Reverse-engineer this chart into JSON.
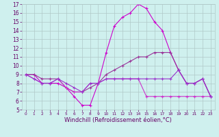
{
  "xlabel": "Windchill (Refroidissement éolien,°C)",
  "x": [
    0,
    1,
    2,
    3,
    4,
    5,
    6,
    7,
    8,
    9,
    10,
    11,
    12,
    13,
    14,
    15,
    16,
    17,
    18,
    19,
    20,
    21,
    22,
    23
  ],
  "series": [
    [
      9.0,
      9.0,
      8.0,
      8.0,
      8.0,
      7.5,
      6.5,
      5.5,
      5.5,
      8.0,
      11.5,
      14.5,
      15.5,
      16.0,
      17.0,
      16.5,
      15.0,
      14.0,
      11.5,
      9.5,
      8.0,
      8.0,
      8.5,
      6.5
    ],
    [
      9.0,
      9.0,
      8.5,
      8.5,
      8.5,
      7.5,
      7.0,
      7.0,
      7.5,
      8.0,
      9.0,
      9.5,
      10.0,
      10.5,
      11.0,
      11.0,
      11.5,
      11.5,
      11.5,
      9.5,
      8.0,
      8.0,
      8.5,
      6.5
    ],
    [
      9.0,
      8.5,
      8.0,
      8.0,
      8.5,
      7.5,
      7.0,
      7.0,
      8.0,
      8.0,
      8.5,
      8.5,
      8.5,
      8.5,
      8.5,
      6.5,
      6.5,
      6.5,
      6.5,
      6.5,
      6.5,
      6.5,
      6.5,
      6.5
    ],
    [
      9.0,
      8.5,
      8.0,
      8.0,
      8.5,
      8.0,
      7.5,
      7.0,
      8.0,
      8.0,
      8.5,
      8.5,
      8.5,
      8.5,
      8.5,
      8.5,
      8.5,
      8.5,
      8.5,
      9.5,
      8.0,
      8.0,
      8.5,
      6.5
    ]
  ],
  "colors": [
    "#cc00cc",
    "#993399",
    "#cc33cc",
    "#9933cc"
  ],
  "marker": "+",
  "markersize": 3,
  "linewidth": 0.8,
  "ylim": [
    5,
    17
  ],
  "yticks": [
    5,
    6,
    7,
    8,
    9,
    10,
    11,
    12,
    13,
    14,
    15,
    16,
    17
  ],
  "xticks": [
    0,
    1,
    2,
    3,
    4,
    5,
    6,
    7,
    8,
    9,
    10,
    11,
    12,
    13,
    14,
    15,
    16,
    17,
    18,
    19,
    20,
    21,
    22,
    23
  ],
  "bg_color": "#cff0ee",
  "grid_color": "#b0c8c8",
  "tick_color": "#660066",
  "label_color": "#660066",
  "ytick_fontsize": 5.5,
  "xtick_fontsize": 4.2,
  "xlabel_fontsize": 6.0
}
